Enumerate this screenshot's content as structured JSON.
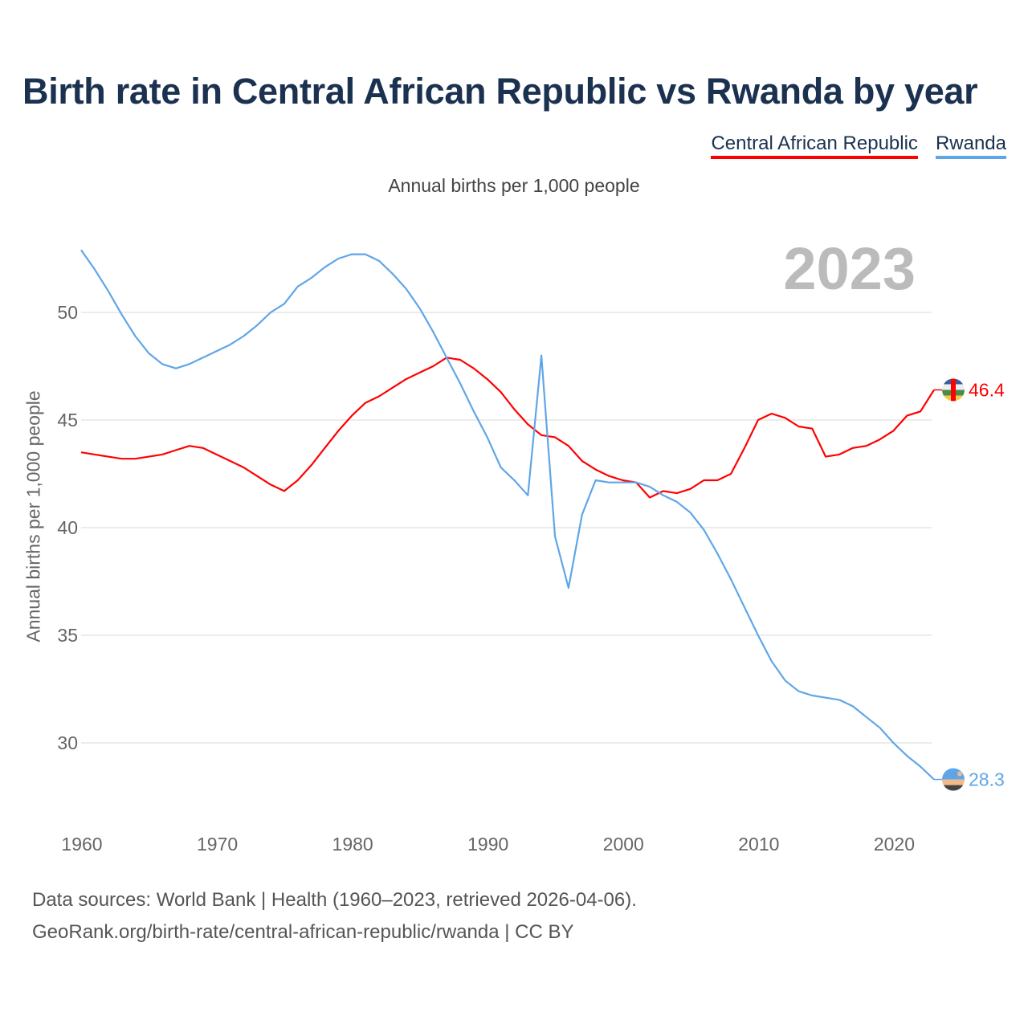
{
  "title": "Birth rate in Central African Republic vs Rwanda by year",
  "legend": [
    {
      "label": "Central African Republic",
      "color": "#ff0000"
    },
    {
      "label": "Rwanda",
      "color": "#5fa6e8"
    }
  ],
  "subtitle": "Annual births per 1,000 people",
  "footer": {
    "line1": "Data sources: World Bank | Health (1960–2023, retrieved 2026-04-06).",
    "line2": "GeoRank.org/birth-rate/central-african-republic/rwanda | CC BY"
  },
  "chart_data": {
    "type": "line",
    "title": "Birth rate in Central African Republic vs Rwanda by year",
    "ylabel": "Annual births per 1,000 people",
    "xlabel": "",
    "year_label": "2023",
    "xlim": [
      1960,
      2023
    ],
    "ylim": [
      28,
      53
    ],
    "x_ticks": [
      "1960",
      "1970",
      "1980",
      "1990",
      "2000",
      "2010",
      "2020"
    ],
    "y_ticks": [
      "30",
      "35",
      "40",
      "45",
      "50"
    ],
    "grid": true,
    "legend_position": "top-right",
    "x_start": 1960,
    "series": [
      {
        "name": "Central African Republic",
        "color": "#ff0000",
        "end_label": "46.4",
        "values": [
          43.5,
          43.4,
          43.3,
          43.2,
          43.2,
          43.3,
          43.4,
          43.6,
          43.8,
          43.7,
          43.4,
          43.1,
          42.8,
          42.4,
          42.0,
          41.7,
          42.2,
          42.9,
          43.7,
          44.5,
          45.2,
          45.8,
          46.1,
          46.5,
          46.9,
          47.2,
          47.5,
          47.9,
          47.8,
          47.4,
          46.9,
          46.3,
          45.5,
          44.8,
          44.3,
          44.2,
          43.8,
          43.1,
          42.7,
          42.4,
          42.2,
          42.1,
          41.4,
          41.7,
          41.6,
          41.8,
          42.2,
          42.2,
          42.5,
          43.7,
          45.0,
          45.3,
          45.1,
          44.7,
          44.6,
          43.3,
          43.4,
          43.7,
          43.8,
          44.1,
          44.5,
          45.2,
          45.4,
          46.4
        ]
      },
      {
        "name": "Rwanda",
        "color": "#5fa6e8",
        "end_label": "28.3",
        "values": [
          52.9,
          52.0,
          51.0,
          49.9,
          48.9,
          48.1,
          47.6,
          47.4,
          47.6,
          47.9,
          48.2,
          48.5,
          48.9,
          49.4,
          50.0,
          50.4,
          51.2,
          51.6,
          52.1,
          52.5,
          52.7,
          52.7,
          52.4,
          51.8,
          51.1,
          50.2,
          49.1,
          47.9,
          46.7,
          45.4,
          44.2,
          42.8,
          42.2,
          41.5,
          48.0,
          39.6,
          37.2,
          40.6,
          42.2,
          42.1,
          42.1,
          42.1,
          41.9,
          41.5,
          41.2,
          40.7,
          39.9,
          38.8,
          37.6,
          36.3,
          35.0,
          33.8,
          32.9,
          32.4,
          32.2,
          32.1,
          32.0,
          31.7,
          31.2,
          30.7,
          30.0,
          29.4,
          28.9,
          28.3
        ]
      }
    ]
  }
}
